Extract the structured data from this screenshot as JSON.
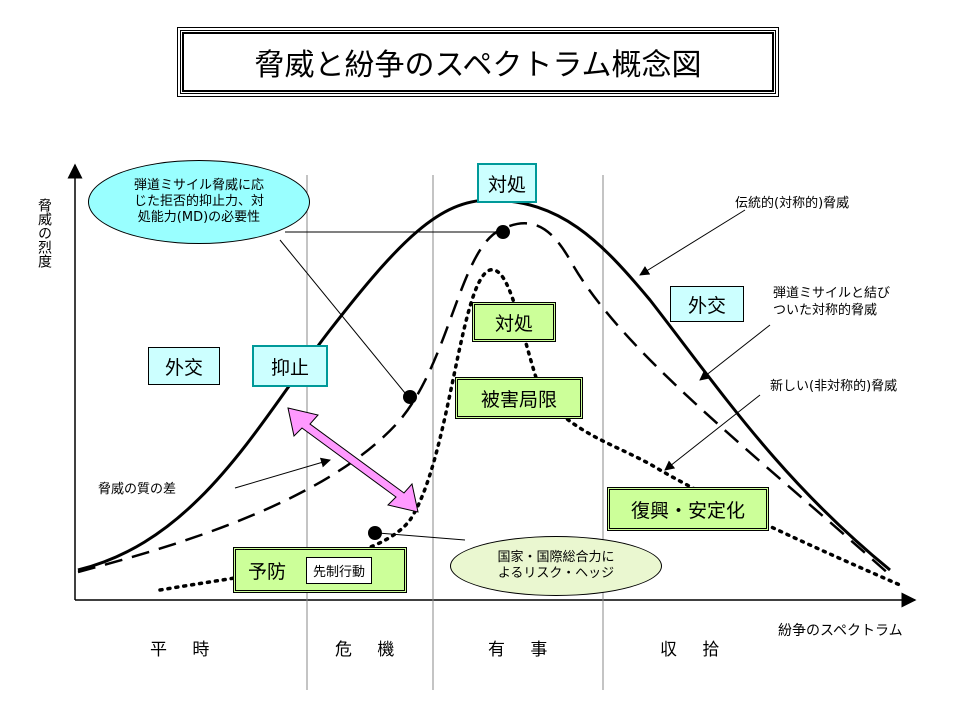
{
  "title": "脅威と紛争のスペクトラム概念図",
  "axes": {
    "y_label": "脅威の烈度",
    "x_label": "紛争のスペクトラム"
  },
  "phases": [
    "平 時",
    "危 機",
    "有 事",
    "収 拾"
  ],
  "curves": {
    "traditional": "伝統的(対称的)脅威",
    "missile_linked_line1": "弾道ミサイルと結び",
    "missile_linked_line2": "ついた対称的脅威",
    "new_line1": "新しい(非対称的)脅威"
  },
  "boxes": {
    "taisho_top": "対処",
    "taisho_mid": "対処",
    "gaiko_left": "外交",
    "gaiko_right": "外交",
    "yokushi": "抑止",
    "higai": "被害局限",
    "fukko": "復興・安定化",
    "yobo": "予防",
    "sensei": "先制行動"
  },
  "callouts": {
    "missile_line1": "弾道ミサイル脅威に応",
    "missile_line2": "じた拒否的抑止力、対",
    "missile_line3": "処能力(MD)の必要性",
    "national_line1": "国家・国際総合力に",
    "national_line2": "よるリスク・ヘッジ",
    "quality_gap": "脅威の質の差"
  },
  "colors": {
    "cyan_box": "#ccffff",
    "green_box": "#ccff99",
    "cyan_ellipse": "#99ffff",
    "green_ellipse": "#eaf7d0",
    "arrow": "#ff99ff"
  }
}
